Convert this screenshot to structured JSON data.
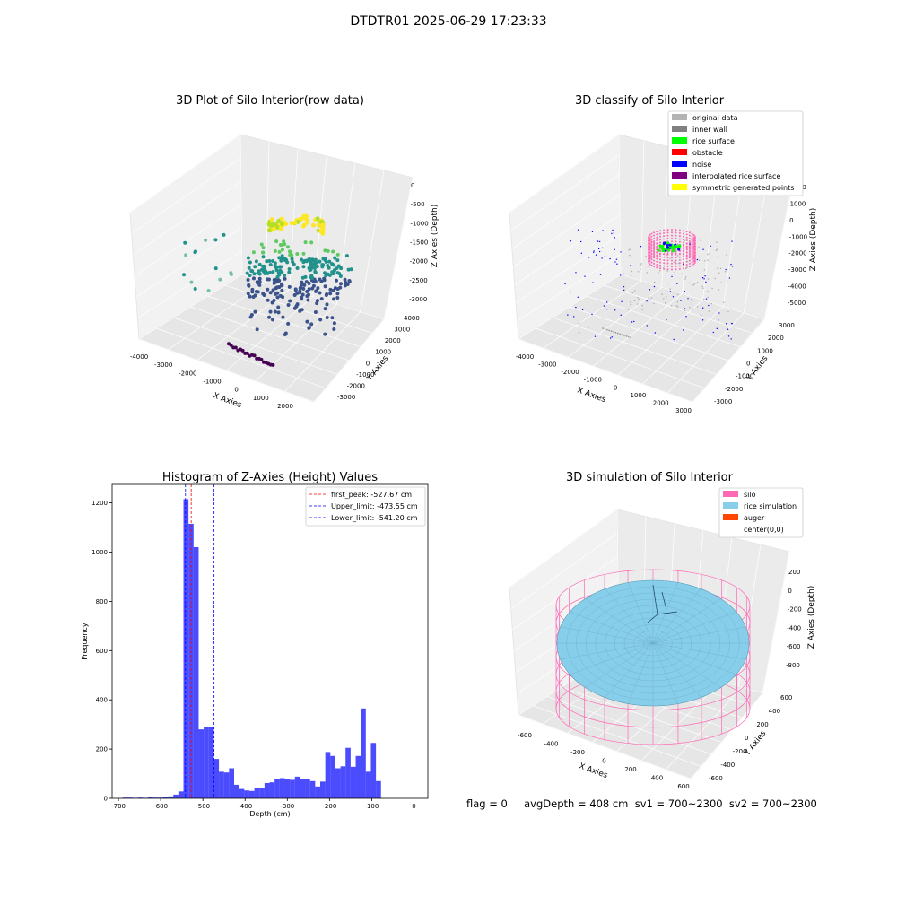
{
  "figure": {
    "suptitle": "DTDTR01 2025-06-29 17:23:33",
    "footer": "flag = 0     avgDepth = 408 cm  sv1 = 700~2300  sv2 = 700~2300"
  },
  "chart_data": [
    {
      "type": "scatter",
      "title": "3D Plot of Silo Interior(row data)",
      "xlabel": "X Axies",
      "ylabel": "Y Axies",
      "zlabel": "Z Axies (Depth)",
      "x_ticks": [
        "-4000",
        "-3000",
        "-2000",
        "-1000",
        "0",
        "1000",
        "2000"
      ],
      "y_ticks": [
        "-3000",
        "-2000",
        "-1000",
        "0",
        "1000",
        "2000",
        "3000",
        "4000"
      ],
      "z_ticks": [
        "-3000",
        "-2500",
        "-2000",
        "-1500",
        "-1000",
        "-500",
        "0"
      ],
      "colormap": "viridis"
    },
    {
      "type": "scatter",
      "title": "3D classify of Silo Interior",
      "xlabel": "X Axies",
      "ylabel": "Y Axies",
      "zlabel": "Z Axies (Depth)",
      "x_ticks": [
        "-4000",
        "-3000",
        "-2000",
        "-1000",
        "0",
        "1000",
        "2000",
        "3000"
      ],
      "y_ticks": [
        "-3000",
        "-2000",
        "-1000",
        "0",
        "1000",
        "2000",
        "3000"
      ],
      "z_ticks": [
        "-5000",
        "-4000",
        "-3000",
        "-2000",
        "-1000",
        "0",
        "1000",
        "2000"
      ],
      "legend": [
        {
          "label": "original data",
          "color": "#b3b3b3"
        },
        {
          "label": "inner wall",
          "color": "#808080"
        },
        {
          "label": "rice surface",
          "color": "#00ff00"
        },
        {
          "label": "obstacle",
          "color": "#ff0000"
        },
        {
          "label": "noise",
          "color": "#0000ff"
        },
        {
          "label": "interpolated rice surface",
          "color": "#800080"
        },
        {
          "label": "symmetric generated points",
          "color": "#ffff00"
        }
      ],
      "legend_placement": "top-right"
    },
    {
      "type": "bar",
      "title": "Histogram of Z-Axies (Height) Values",
      "xlabel": "Depth (cm)",
      "ylabel": "Frequency",
      "xlim": [
        -715,
        33
      ],
      "ylim": [
        0,
        1275
      ],
      "x_ticks": [
        -700,
        -600,
        -500,
        -400,
        -300,
        -200,
        -100,
        0
      ],
      "y_ticks": [
        0,
        200,
        400,
        600,
        800,
        1000,
        1200
      ],
      "bin_width": 12,
      "bin_start": -690,
      "values": [
        3,
        3,
        2,
        3,
        2,
        4,
        3,
        3,
        5,
        8,
        15,
        28,
        1215,
        1115,
        1020,
        280,
        290,
        288,
        160,
        108,
        105,
        122,
        55,
        38,
        32,
        30,
        42,
        40,
        62,
        65,
        78,
        82,
        80,
        75,
        88,
        80,
        78,
        70,
        48,
        68,
        188,
        172,
        122,
        130,
        205,
        128,
        172,
        365,
        108,
        225,
        70
      ],
      "bar_color": "#0000ff",
      "lines": [
        {
          "label": "first_peak: -527.67 cm",
          "x": -527.67,
          "color": "#ff0000"
        },
        {
          "label": "Upper_limit: -473.55 cm",
          "x": -473.55,
          "color": "#0000ff"
        },
        {
          "label": "Lower_limit: -541.20 cm",
          "x": -541.2,
          "color": "#0000ff"
        }
      ],
      "legend_placement": "top-right"
    },
    {
      "type": "scatter",
      "title": "3D simulation of Silo Interior",
      "xlabel": "X Axies",
      "ylabel": "Y Axies",
      "zlabel": "Z Axies (Depth)",
      "x_ticks": [
        "-600",
        "-400",
        "-200",
        "0",
        "200",
        "400",
        "600"
      ],
      "y_ticks": [
        "-600",
        "-400",
        "-200",
        "0",
        "200",
        "400",
        "600"
      ],
      "z_ticks": [
        "-800",
        "-600",
        "-400",
        "-200",
        "0",
        "200"
      ],
      "legend": [
        {
          "label": "silo",
          "color": "#ff69b4"
        },
        {
          "label": "rice simulation",
          "color": "#87ceeb"
        },
        {
          "label": "auger",
          "color": "#ff4500"
        },
        {
          "label": "center(0,0)",
          "color": ""
        }
      ],
      "legend_placement": "top-right"
    }
  ]
}
